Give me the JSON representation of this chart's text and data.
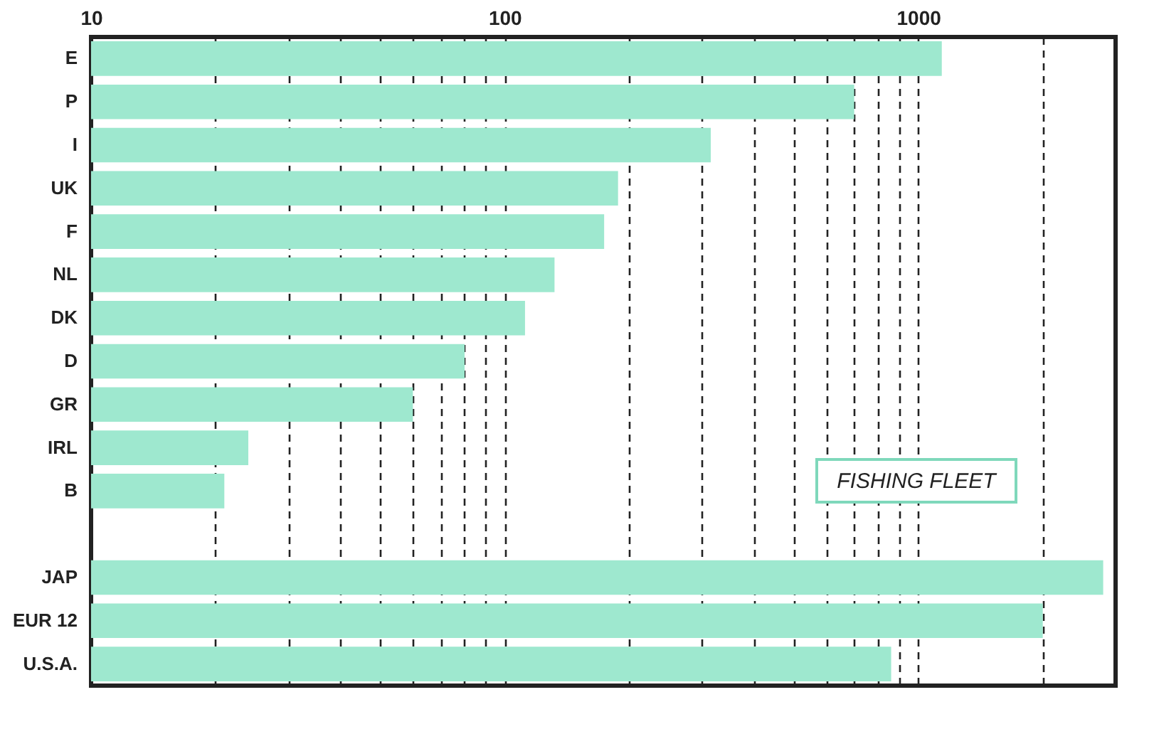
{
  "chart_data": {
    "type": "bar",
    "orientation": "horizontal",
    "log": "x",
    "categories": [
      "E",
      "P",
      "I",
      "UK",
      "F",
      "NL",
      "DK",
      "D",
      "GR",
      "IRL",
      "B",
      null,
      "JAP",
      "EUR 12",
      "U.S.A."
    ],
    "values": [
      1140,
      700,
      315,
      188,
      174,
      132,
      112,
      80,
      60,
      24,
      21,
      null,
      2800,
      2000,
      860
    ],
    "color": "#9ee8cf",
    "xlim": [
      10,
      3000
    ],
    "xticks": [
      10,
      {
        "value": 20,
        "label": null
      },
      {
        "value": 30,
        "label": null
      },
      {
        "value": 40,
        "label": null
      },
      {
        "value": 50,
        "label": null
      },
      {
        "value": 60,
        "label": null
      },
      {
        "value": 70,
        "label": null
      },
      {
        "value": 80,
        "label": null
      },
      {
        "value": 90,
        "label": null
      },
      100,
      {
        "value": 200,
        "label": null
      },
      {
        "value": 300,
        "label": null
      },
      {
        "value": 400,
        "label": null
      },
      {
        "value": 500,
        "label": null
      },
      {
        "value": 600,
        "label": null
      },
      {
        "value": 700,
        "label": null
      },
      {
        "value": 800,
        "label": null
      },
      {
        "value": 900,
        "label": null
      },
      1000,
      {
        "value": 2000,
        "label": null
      }
    ],
    "grid": "x",
    "line_style": "dashed",
    "annotations": [
      "FISHING FLEET"
    ]
  }
}
